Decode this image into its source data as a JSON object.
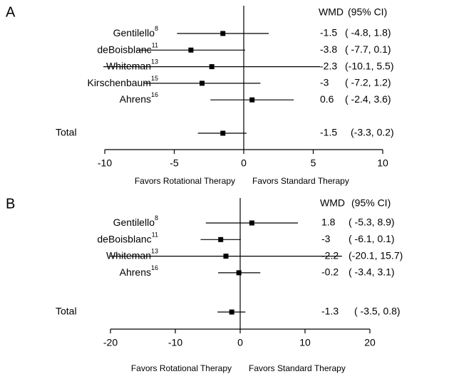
{
  "chart_data": [
    {
      "type": "forest",
      "panel": "A",
      "columns": [
        "WMD",
        "(95% CI)"
      ],
      "studies": [
        {
          "name": "Gentilello",
          "ref": "8",
          "wmd": -1.5,
          "ci": [
            -4.8,
            1.8
          ],
          "ci_label": "( -4.8, 1.8)"
        },
        {
          "name": "deBoisblanc",
          "ref": "11",
          "wmd": -3.8,
          "ci": [
            -7.7,
            0.1
          ],
          "ci_label": "( -7.7, 0.1)"
        },
        {
          "name": "Whiteman",
          "ref": "13",
          "wmd": -2.3,
          "ci": [
            -10.1,
            5.5
          ],
          "ci_label": "(-10.1, 5.5)"
        },
        {
          "name": "Kirschenbaum",
          "ref": "15",
          "wmd": -3.0,
          "ci": [
            -7.2,
            1.2
          ],
          "ci_label": "( -7.2, 1.2)"
        },
        {
          "name": "Ahrens",
          "ref": "16",
          "wmd": 0.6,
          "ci": [
            -2.4,
            3.6
          ],
          "ci_label": "( -2.4, 3.6)"
        }
      ],
      "total": {
        "name": "Total",
        "wmd": -1.5,
        "ci": [
          -3.3,
          0.2
        ],
        "ci_label": "(-3.3, 0.2)"
      },
      "xlim": [
        -10,
        10
      ],
      "xticks": [
        -10,
        -5,
        0,
        5,
        10
      ],
      "xlabels": [
        "Favors Rotational Therapy",
        "Favors Standard Therapy"
      ],
      "color": "#000000"
    },
    {
      "type": "forest",
      "panel": "B",
      "columns": [
        "WMD",
        "(95% CI)"
      ],
      "studies": [
        {
          "name": "Gentilello",
          "ref": "8",
          "wmd": 1.8,
          "ci": [
            -5.3,
            8.9
          ],
          "ci_label": "( -5.3, 8.9)"
        },
        {
          "name": "deBoisblanc",
          "ref": "11",
          "wmd": -3.0,
          "ci": [
            -6.1,
            0.1
          ],
          "ci_label": "( -6.1, 0.1)"
        },
        {
          "name": "Whiteman",
          "ref": "13",
          "wmd": -2.2,
          "ci": [
            -20.1,
            15.7
          ],
          "ci_label": "(-20.1, 15.7)"
        },
        {
          "name": "Ahrens",
          "ref": "16",
          "wmd": -0.2,
          "ci": [
            -3.4,
            3.1
          ],
          "ci_label": "( -3.4, 3.1)"
        }
      ],
      "total": {
        "name": "Total",
        "wmd": -1.3,
        "ci": [
          -3.5,
          0.8
        ],
        "ci_label": "( -3.5, 0.8)"
      },
      "xlim": [
        -20,
        20
      ],
      "xticks": [
        -20,
        -10,
        0,
        10,
        20
      ],
      "xlabels": [
        "Favors Rotational Therapy",
        "Favors Standard Therapy"
      ],
      "color": "#000000"
    }
  ]
}
